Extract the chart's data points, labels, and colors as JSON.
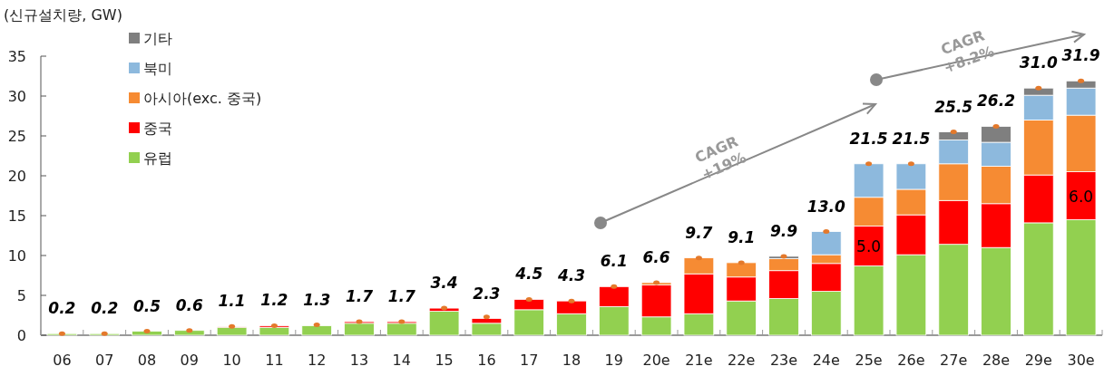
{
  "chart_data": {
    "type": "bar",
    "stacked": true,
    "ylabel": "(신규설치량, GW)",
    "categories": [
      "06",
      "07",
      "08",
      "09",
      "10",
      "11",
      "12",
      "13",
      "14",
      "15",
      "16",
      "17",
      "18",
      "19",
      "20e",
      "21e",
      "22e",
      "23e",
      "24e",
      "25e",
      "26e",
      "27e",
      "28e",
      "29e",
      "30e"
    ],
    "series": [
      {
        "name": "유럽",
        "color": "#92d050",
        "values": [
          0.2,
          0.2,
          0.5,
          0.6,
          1.0,
          1.0,
          1.2,
          1.5,
          1.5,
          3.0,
          1.5,
          3.2,
          2.7,
          3.6,
          2.3,
          2.7,
          4.3,
          4.6,
          5.5,
          8.7,
          10.1,
          11.4,
          11.0,
          14.1,
          14.5
        ]
      },
      {
        "name": "중국",
        "color": "#ff0000",
        "values": [
          0,
          0,
          0,
          0,
          0.1,
          0.2,
          null,
          0.2,
          0.2,
          0.4,
          0.6,
          1.3,
          1.6,
          2.5,
          4.0,
          5.0,
          3.0,
          3.5,
          3.5,
          5.0,
          5.0,
          5.5,
          5.5,
          6.0,
          6.0
        ],
        "value_labels": [
          null,
          null,
          null,
          null,
          null,
          null,
          null,
          null,
          null,
          null,
          null,
          null,
          null,
          null,
          null,
          null,
          null,
          null,
          null,
          "5.0",
          null,
          null,
          null,
          null,
          "6.0"
        ]
      },
      {
        "name": "아시아(exc. 중국)",
        "color": "#f68b33",
        "values": [
          0,
          0,
          0,
          0,
          0,
          0,
          0,
          0,
          0,
          0,
          0,
          0,
          0,
          0,
          0.3,
          2.0,
          1.8,
          1.5,
          1.1,
          3.6,
          3.2,
          4.6,
          4.7,
          6.9,
          7.1
        ]
      },
      {
        "name": "북미",
        "color": "#8db9dd",
        "values": [
          0,
          0,
          0,
          0,
          0,
          0,
          0,
          0,
          0,
          0,
          0,
          0,
          0,
          0,
          0,
          0,
          0,
          0,
          2.9,
          4.2,
          3.2,
          3.0,
          3.0,
          3.1,
          3.4
        ]
      },
      {
        "name": "기타",
        "color": "#7f7f7f",
        "values": [
          0,
          0,
          0,
          0,
          0,
          0,
          0,
          0,
          0,
          0,
          0,
          0,
          0,
          0,
          0,
          0,
          0,
          0.3,
          0,
          0,
          0,
          1.0,
          2.0,
          0.9,
          0.9
        ]
      },
      {
        "type": "scatter",
        "color": "#e4792b",
        "marker": "circle",
        "values": [
          0.2,
          0.2,
          0.5,
          0.6,
          1.1,
          1.2,
          1.3,
          1.7,
          1.7,
          3.4,
          2.3,
          4.5,
          4.3,
          6.1,
          6.6,
          9.7,
          9.1,
          9.9,
          13.0,
          21.5,
          21.5,
          25.5,
          26.2,
          31.0,
          31.9
        ]
      }
    ],
    "totals": [
      "0.2",
      "0.2",
      "0.5",
      "0.6",
      "1.1",
      "1.2",
      "1.3",
      "1.7",
      "1.7",
      "3.4",
      "2.3",
      "4.5",
      "4.3",
      "6.1",
      "6.6",
      "9.7",
      "9.1",
      "9.9",
      "13.0",
      "21.5",
      "21.5",
      "25.5",
      "26.2",
      "31.0",
      "31.9"
    ],
    "ylim": [
      0,
      35
    ],
    "yticks": [
      0,
      5,
      10,
      15,
      20,
      25,
      30,
      35
    ],
    "grid": false,
    "legend": "top left",
    "annotations": [
      "CAGR\n+19%",
      "CAGR\n+8.2%"
    ]
  }
}
